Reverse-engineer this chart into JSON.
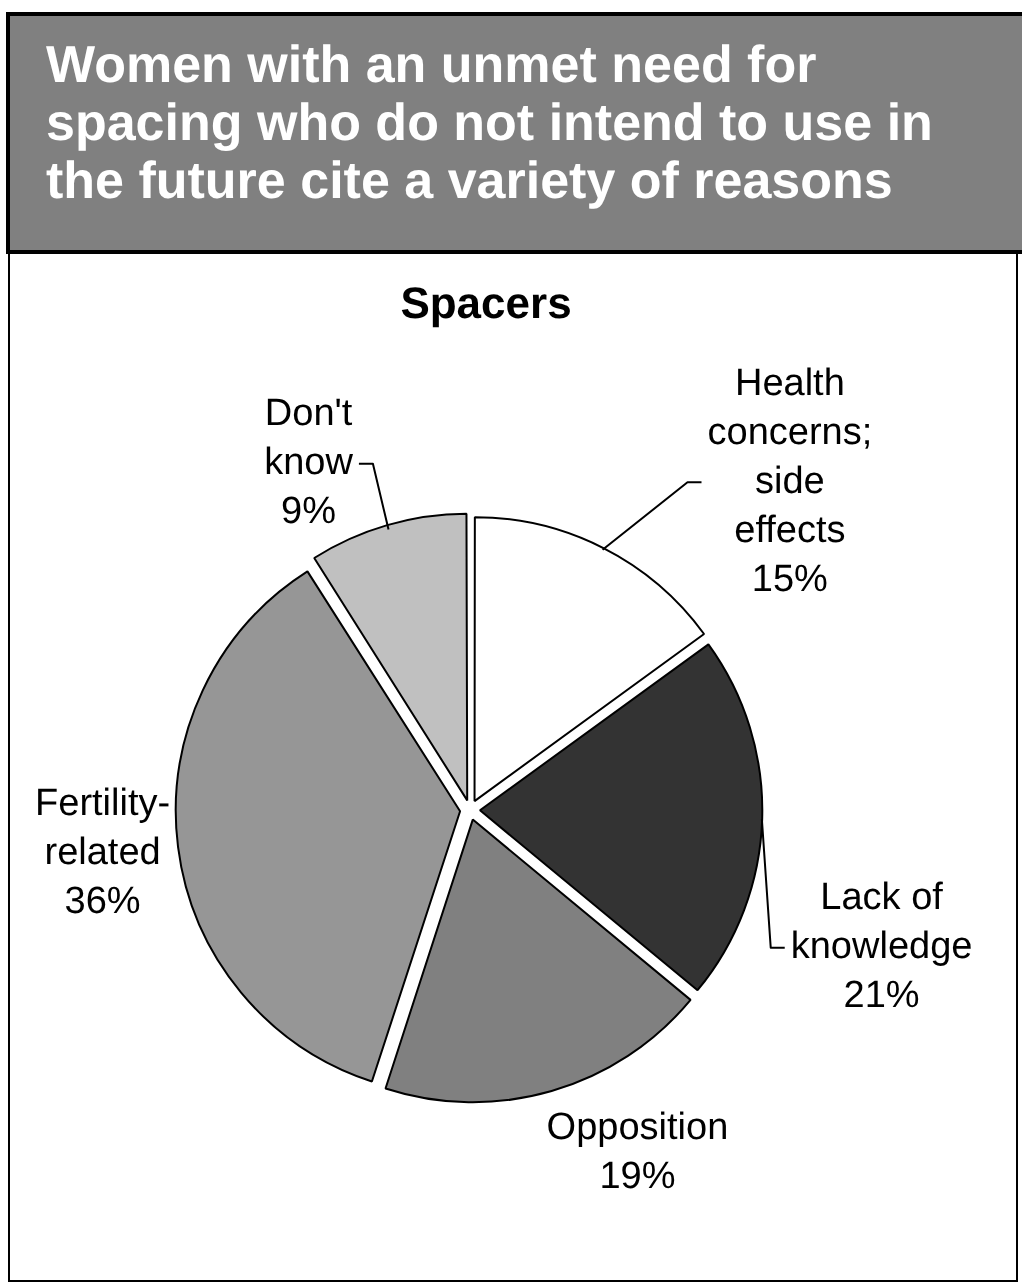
{
  "chart_data": {
    "type": "pie",
    "title": "Women with an unmet need for spacing who do not intend to use in the future cite a variety of reasons",
    "subtitle": "Spacers",
    "categories": [
      "Health concerns; side effects",
      "Lack of knowledge",
      "Opposition",
      "Fertility-related",
      "Don't know"
    ],
    "values": [
      15,
      21,
      19,
      36,
      9
    ],
    "value_labels": [
      "15%",
      "21%",
      "19%",
      "36%",
      "9%"
    ],
    "colors": [
      "#ffffff",
      "#333333",
      "#808080",
      "#969696",
      "#c0c0c0"
    ],
    "legend": false
  }
}
